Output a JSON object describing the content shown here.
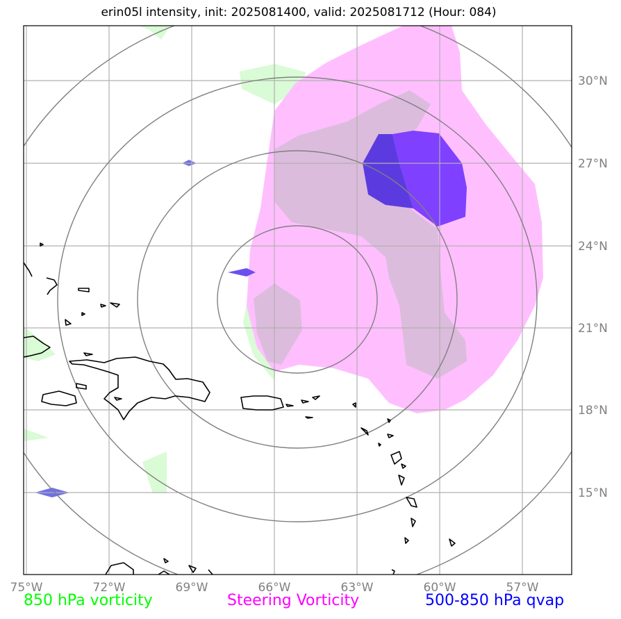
{
  "title": "erin05l intensity, init: 2025081400, valid: 2025081712 (Hour: 084)",
  "map": {
    "lon_range": [
      -75,
      -55.1
    ],
    "lat_range": [
      12.5,
      32.5
    ],
    "lon_ticks": [
      "75°W",
      "72°W",
      "69°W",
      "66°W",
      "63°W",
      "60°W",
      "57°W"
    ],
    "lat_ticks": [
      "30°N",
      "27°N",
      "24°N",
      "21°N",
      "18°N",
      "15°N"
    ],
    "storm_center": [
      -64.0,
      21.0
    ],
    "range_ring_count": 4
  },
  "colors": {
    "vorticity_850": "#00ff00",
    "steering_vorticity": "#ff00ff",
    "qvap_500_850": "#0000ff",
    "rings": "#808080",
    "grid": "#b0b0b0",
    "coast": "#000000"
  },
  "legend": {
    "vort850": "850 hPa vorticity",
    "steering": "Steering Vorticity",
    "qvap": "500-850 hPa qvap"
  }
}
